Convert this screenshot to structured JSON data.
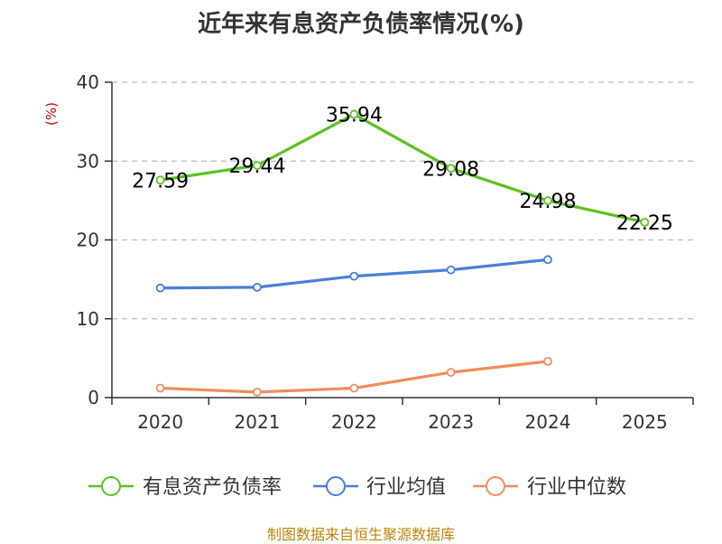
{
  "chart_data": {
    "type": "line",
    "title": "近年来有息资产负债率情况(%)",
    "unit_label": "(%)",
    "categories": [
      "2020",
      "2021",
      "2022",
      "2023",
      "2024",
      "2025"
    ],
    "y_ticks": [
      "0",
      "10",
      "20",
      "30",
      "40"
    ],
    "ylim": [
      0,
      40
    ],
    "grid": "horizontal-dashed",
    "legend_position": "bottom",
    "series": [
      {
        "name": "有息资产负债率",
        "color": "#5ac21f",
        "values": [
          27.59,
          29.44,
          35.94,
          29.08,
          24.98,
          22.25
        ],
        "labels": [
          "27.59",
          "29.44",
          "35.94",
          "29.08",
          "24.98",
          "22.25"
        ]
      },
      {
        "name": "行业均值",
        "color": "#4a7fd8",
        "values": [
          13.9,
          14.0,
          15.4,
          16.2,
          17.5,
          null
        ]
      },
      {
        "name": "行业中位数",
        "color": "#f28c5a",
        "values": [
          1.2,
          0.7,
          1.2,
          3.2,
          4.6,
          null
        ]
      }
    ],
    "source": "制图数据来自恒生聚源数据库"
  }
}
